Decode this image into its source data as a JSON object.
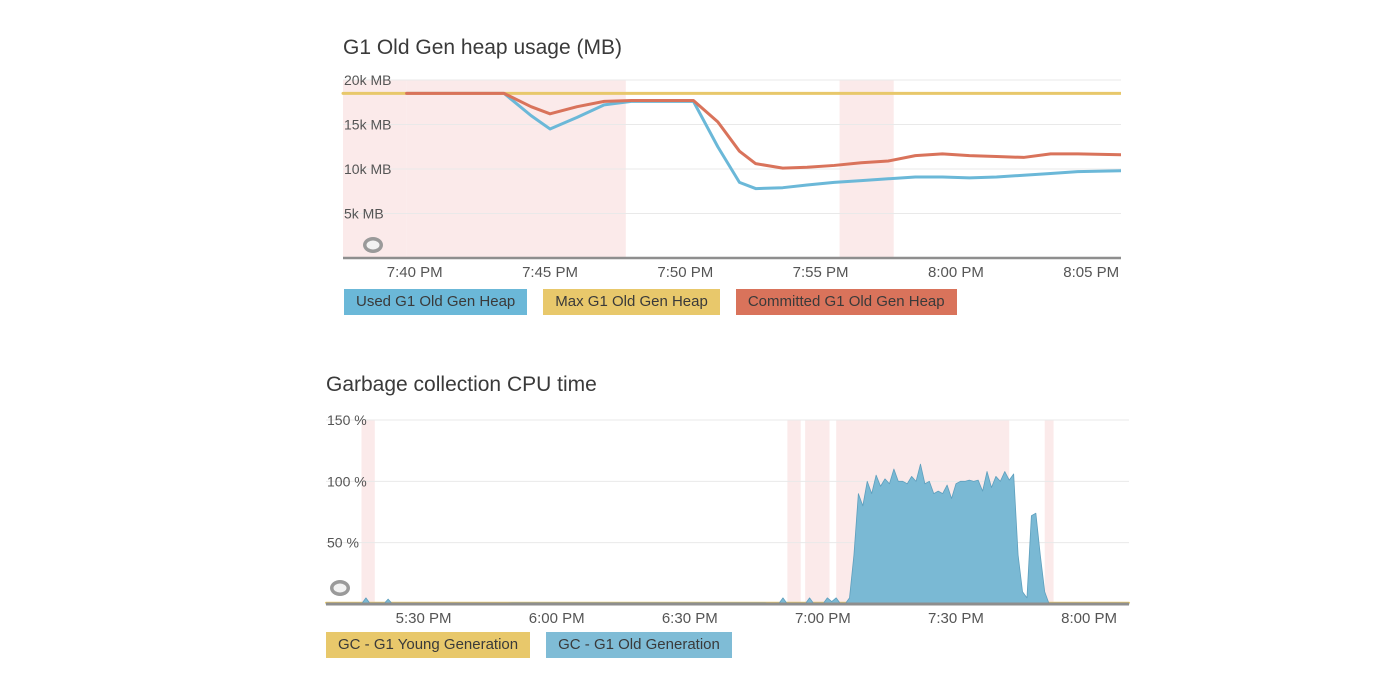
{
  "colors": {
    "used": "#6bb8d8",
    "max": "#e8c86b",
    "committed": "#d9735b",
    "young": "#e8c86b",
    "old": "#7fbcd6",
    "old_fill": "#7ab9d4",
    "highlight": "#fbeaea",
    "grid": "#e9e9e9",
    "axis": "#8e8e8e"
  },
  "panels": {
    "heap": {
      "title": "G1 Old Gen heap usage (MB)"
    },
    "gc": {
      "title": "Garbage collection CPU time"
    }
  },
  "chart_data": [
    {
      "type": "line",
      "title": "G1 Old Gen heap usage (MB)",
      "x_unit": "minutes after 7:35 PM",
      "xlim": [
        32.35,
        61.1
      ],
      "ylim": [
        0,
        20000
      ],
      "y_ticks": [
        {
          "value": 5000,
          "label": "5k MB"
        },
        {
          "value": 10000,
          "label": "10k MB"
        },
        {
          "value": 15000,
          "label": "15k MB"
        },
        {
          "value": 20000,
          "label": "20k MB"
        }
      ],
      "x_ticks": [
        {
          "x": 35,
          "label": "7:40 PM"
        },
        {
          "x": 40,
          "label": "7:45 PM"
        },
        {
          "x": 45,
          "label": "7:50 PM"
        },
        {
          "x": 50,
          "label": "7:55 PM"
        },
        {
          "x": 55,
          "label": "8:00 PM"
        },
        {
          "x": 60,
          "label": "8:05 PM"
        }
      ],
      "highlights": [
        [
          32.35,
          34.7
        ],
        [
          34.7,
          42.8
        ],
        [
          50.7,
          52.7
        ]
      ],
      "series": [
        {
          "name": "Used G1 Old Gen Heap",
          "color_key": "used",
          "points": [
            [
              34.7,
              18500
            ],
            [
              38.3,
              18500
            ],
            [
              39.3,
              16000
            ],
            [
              40.0,
              14500
            ],
            [
              41.0,
              15800
            ],
            [
              42.0,
              17200
            ],
            [
              43.0,
              17600
            ],
            [
              45.3,
              17600
            ],
            [
              46.2,
              12500
            ],
            [
              47.0,
              8500
            ],
            [
              47.6,
              7800
            ],
            [
              48.6,
              7900
            ],
            [
              49.5,
              8200
            ],
            [
              50.5,
              8500
            ],
            [
              51.5,
              8700
            ],
            [
              52.5,
              8900
            ],
            [
              53.5,
              9100
            ],
            [
              54.5,
              9100
            ],
            [
              55.5,
              9000
            ],
            [
              56.5,
              9100
            ],
            [
              57.5,
              9300
            ],
            [
              58.5,
              9500
            ],
            [
              59.5,
              9700
            ],
            [
              61.1,
              9800
            ]
          ]
        },
        {
          "name": "Max G1 Old Gen Heap",
          "color_key": "max",
          "points": [
            [
              32.35,
              18500
            ],
            [
              61.1,
              18500
            ]
          ]
        },
        {
          "name": "Committed G1 Old Gen Heap",
          "color_key": "committed",
          "points": [
            [
              34.7,
              18500
            ],
            [
              38.3,
              18500
            ],
            [
              39.3,
              17000
            ],
            [
              40.0,
              16200
            ],
            [
              41.0,
              17000
            ],
            [
              42.0,
              17600
            ],
            [
              43.0,
              17700
            ],
            [
              45.3,
              17700
            ],
            [
              46.2,
              15300
            ],
            [
              47.0,
              12000
            ],
            [
              47.6,
              10600
            ],
            [
              48.6,
              10100
            ],
            [
              49.5,
              10200
            ],
            [
              50.5,
              10400
            ],
            [
              51.5,
              10700
            ],
            [
              52.5,
              10900
            ],
            [
              53.5,
              11500
            ],
            [
              54.5,
              11700
            ],
            [
              55.5,
              11500
            ],
            [
              56.5,
              11400
            ],
            [
              57.5,
              11300
            ],
            [
              58.5,
              11700
            ],
            [
              59.5,
              11700
            ],
            [
              61.1,
              11600
            ]
          ]
        }
      ],
      "legend": [
        "Used G1 Old Gen Heap",
        "Max G1 Old Gen Heap",
        "Committed G1 Old Gen Heap"
      ]
    },
    {
      "type": "area",
      "title": "Garbage collection CPU time",
      "x_unit": "minutes after 5:00 PM",
      "xlim": [
        8,
        189
      ],
      "ylim": [
        0,
        150
      ],
      "y_ticks": [
        {
          "value": 50,
          "label": "50 %"
        },
        {
          "value": 100,
          "label": "100 %"
        },
        {
          "value": 150,
          "label": "150 %"
        }
      ],
      "x_ticks": [
        {
          "x": 30,
          "label": "5:30 PM"
        },
        {
          "x": 60,
          "label": "6:00 PM"
        },
        {
          "x": 90,
          "label": "6:30 PM"
        },
        {
          "x": 120,
          "label": "7:00 PM"
        },
        {
          "x": 150,
          "label": "7:30 PM"
        },
        {
          "x": 180,
          "label": "8:00 PM"
        }
      ],
      "highlights": [
        [
          16,
          19
        ],
        [
          112,
          115
        ],
        [
          116,
          121.5
        ],
        [
          123,
          162
        ],
        [
          170,
          172
        ]
      ],
      "series": [
        {
          "name": "GC - G1 Young Generation",
          "color_key": "young",
          "points": [
            [
              8,
              1
            ],
            [
              60,
              1
            ],
            [
              189,
              1
            ]
          ]
        },
        {
          "name": "GC - G1 Old Generation",
          "color_key": "old",
          "points": [
            [
              8,
              0
            ],
            [
              16,
              0
            ],
            [
              17,
              5
            ],
            [
              18,
              0
            ],
            [
              21,
              0
            ],
            [
              22,
              4
            ],
            [
              23,
              0
            ],
            [
              36,
              0
            ],
            [
              50,
              1
            ],
            [
              80,
              1
            ],
            [
              107,
              1
            ],
            [
              110,
              0
            ],
            [
              111,
              5
            ],
            [
              112,
              0
            ],
            [
              116,
              0
            ],
            [
              117,
              5
            ],
            [
              118,
              0
            ],
            [
              120,
              0
            ],
            [
              121,
              5
            ],
            [
              122,
              2
            ],
            [
              123,
              5
            ],
            [
              124,
              0
            ],
            [
              125,
              0
            ],
            [
              126,
              5
            ],
            [
              127,
              40
            ],
            [
              128,
              90
            ],
            [
              129,
              80
            ],
            [
              130,
              100
            ],
            [
              131,
              90
            ],
            [
              132,
              105
            ],
            [
              133,
              96
            ],
            [
              134,
              102
            ],
            [
              135,
              98
            ],
            [
              136,
              110
            ],
            [
              137,
              100
            ],
            [
              138,
              100
            ],
            [
              139,
              98
            ],
            [
              140,
              104
            ],
            [
              141,
              100
            ],
            [
              142,
              114
            ],
            [
              143,
              98
            ],
            [
              144,
              100
            ],
            [
              145,
              90
            ],
            [
              146,
              92
            ],
            [
              147,
              90
            ],
            [
              148,
              97
            ],
            [
              149,
              86
            ],
            [
              150,
              98
            ],
            [
              151,
              100
            ],
            [
              152,
              100
            ],
            [
              153,
              101
            ],
            [
              154,
              100
            ],
            [
              155,
              101
            ],
            [
              156,
              92
            ],
            [
              157,
              108
            ],
            [
              158,
              95
            ],
            [
              159,
              104
            ],
            [
              160,
              100
            ],
            [
              161,
              108
            ],
            [
              162,
              101
            ],
            [
              163,
              106
            ],
            [
              164,
              40
            ],
            [
              165,
              10
            ],
            [
              166,
              5
            ],
            [
              167,
              72
            ],
            [
              168,
              74
            ],
            [
              169,
              40
            ],
            [
              170,
              10
            ],
            [
              171,
              0
            ],
            [
              189,
              0
            ]
          ]
        }
      ],
      "legend": [
        "GC - G1 Young Generation",
        "GC - G1 Old Generation"
      ]
    }
  ]
}
